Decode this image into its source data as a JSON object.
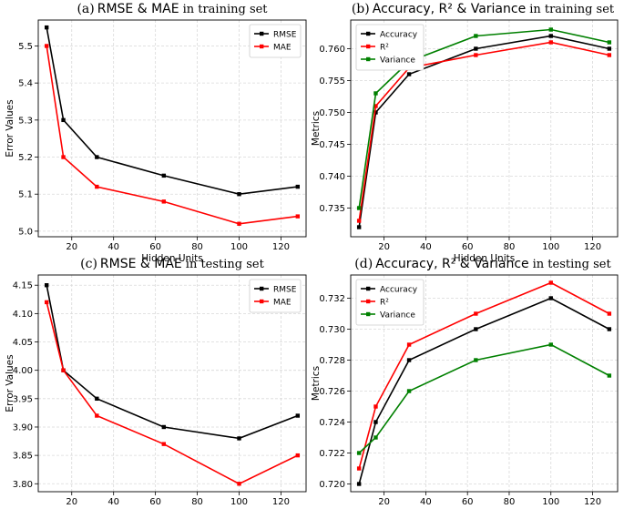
{
  "chart_data": [
    {
      "id": "a",
      "type": "line",
      "title_prefix": "(a)",
      "title_main": "RMSE & MAE",
      "title_suffix": "in training set",
      "xlabel": "Hidden Units",
      "ylabel": "Error Values",
      "x": [
        8,
        16,
        32,
        64,
        100,
        128
      ],
      "xlim": [
        4,
        132
      ],
      "ylim": [
        4.985,
        5.57
      ],
      "xticks": [
        "20",
        "40",
        "60",
        "80",
        "100",
        "120"
      ],
      "yticks": [
        "5.0",
        "5.1",
        "5.2",
        "5.3",
        "5.4",
        "5.5"
      ],
      "grid": true,
      "legend_position": "top-right",
      "series": [
        {
          "name": "RMSE",
          "color": "#000000",
          "values": [
            5.55,
            5.3,
            5.2,
            5.15,
            5.1,
            5.12
          ]
        },
        {
          "name": "MAE",
          "color": "#ff0000",
          "values": [
            5.5,
            5.2,
            5.12,
            5.08,
            5.02,
            5.04
          ]
        }
      ]
    },
    {
      "id": "b",
      "type": "line",
      "title_prefix": "(b)",
      "title_main": "Accuracy, R² & Variance",
      "title_suffix": "in training set",
      "xlabel": "Hidden Units",
      "ylabel": "Metrics",
      "x": [
        8,
        16,
        32,
        64,
        100,
        128
      ],
      "xlim": [
        4,
        132
      ],
      "ylim": [
        0.7305,
        0.7645
      ],
      "xticks": [
        "20",
        "40",
        "60",
        "80",
        "100",
        "120"
      ],
      "yticks": [
        "0.735",
        "0.740",
        "0.745",
        "0.750",
        "0.755",
        "0.760"
      ],
      "grid": true,
      "legend_position": "top-left",
      "series": [
        {
          "name": "Accuracy",
          "color": "#000000",
          "values": [
            0.732,
            0.75,
            0.756,
            0.76,
            0.762,
            0.76
          ]
        },
        {
          "name": "R²",
          "color": "#ff0000",
          "values": [
            0.733,
            0.751,
            0.757,
            0.759,
            0.761,
            0.759
          ]
        },
        {
          "name": "Variance",
          "color": "#008000",
          "values": [
            0.735,
            0.753,
            0.758,
            0.762,
            0.763,
            0.761
          ]
        }
      ]
    },
    {
      "id": "c",
      "type": "line",
      "title_prefix": "(c)",
      "title_main": "RMSE & MAE",
      "title_suffix": "in testing set",
      "xlabel": "Hidden Units",
      "ylabel": "Error Values",
      "x": [
        8,
        16,
        32,
        64,
        100,
        128
      ],
      "xlim": [
        4,
        132
      ],
      "ylim": [
        3.786,
        4.168
      ],
      "xticks": [
        "20",
        "40",
        "60",
        "80",
        "100",
        "120"
      ],
      "yticks": [
        "3.80",
        "3.85",
        "3.90",
        "3.95",
        "4.00",
        "4.05",
        "4.10",
        "4.15"
      ],
      "grid": true,
      "legend_position": "top-right",
      "series": [
        {
          "name": "RMSE",
          "color": "#000000",
          "values": [
            4.15,
            4.0,
            3.95,
            3.9,
            3.88,
            3.92
          ]
        },
        {
          "name": "MAE",
          "color": "#ff0000",
          "values": [
            4.12,
            4.0,
            3.92,
            3.87,
            3.8,
            3.85
          ]
        }
      ]
    },
    {
      "id": "d",
      "type": "line",
      "title_prefix": "(d)",
      "title_main": "Accuracy, R² & Variance",
      "title_suffix": "in testing set",
      "xlabel": "Hidden Units",
      "ylabel": "Metrics",
      "x": [
        8,
        16,
        32,
        64,
        100,
        128
      ],
      "xlim": [
        4,
        132
      ],
      "ylim": [
        0.7195,
        0.7335
      ],
      "xticks": [
        "20",
        "40",
        "60",
        "80",
        "100",
        "120"
      ],
      "yticks": [
        "0.720",
        "0.722",
        "0.724",
        "0.726",
        "0.728",
        "0.730",
        "0.732"
      ],
      "grid": true,
      "legend_position": "top-left",
      "series": [
        {
          "name": "Accuracy",
          "color": "#000000",
          "values": [
            0.72,
            0.724,
            0.728,
            0.73,
            0.732,
            0.73
          ]
        },
        {
          "name": "R²",
          "color": "#ff0000",
          "values": [
            0.721,
            0.725,
            0.729,
            0.731,
            0.733,
            0.731
          ]
        },
        {
          "name": "Variance",
          "color": "#008000",
          "values": [
            0.722,
            0.723,
            0.726,
            0.728,
            0.729,
            0.727
          ]
        }
      ]
    }
  ]
}
